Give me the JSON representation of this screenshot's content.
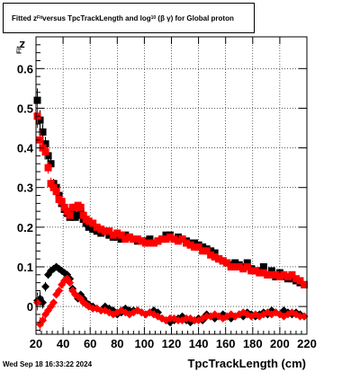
{
  "title": {
    "prefix": "Fitted ",
    "z": "z",
    "z_sub": "Fit",
    "middle": " versus TpcTrackLength and log",
    "log_sub": "10",
    "suffix": "(β γ) for Global proton"
  },
  "footer": "Wed Sep 18 16:33:22 2024",
  "colors": {
    "series_a": "#000000",
    "series_b": "#ff0000",
    "grid": "#000000"
  },
  "chart_data": {
    "type": "scatter",
    "xlabel": "TpcTrackLength (cm)",
    "ylabel": "z",
    "ylabel_sub": "Fit",
    "xlim": [
      20,
      220
    ],
    "ylim": [
      -0.07,
      0.68
    ],
    "xticks": [
      20,
      40,
      60,
      80,
      100,
      120,
      140,
      160,
      180,
      200,
      220
    ],
    "yticks": [
      0,
      0.1,
      0.2,
      0.3,
      0.4,
      0.5,
      0.6
    ],
    "ytick_labels": [
      "0",
      "0.1",
      "0.2",
      "0.3",
      "0.4",
      "0.5",
      "0.6"
    ],
    "grid": true,
    "series": [
      {
        "marker": "square",
        "color": "#000000",
        "x": [
          21,
          23,
          25,
          27,
          29,
          31,
          33,
          35,
          37,
          39,
          41,
          43,
          45,
          47,
          49,
          51,
          53,
          55,
          57,
          59,
          62,
          65,
          68,
          71,
          74,
          77,
          80,
          83,
          86,
          89,
          92,
          95,
          98,
          101,
          104,
          107,
          110,
          113,
          116,
          119,
          122,
          125,
          128,
          131,
          134,
          137,
          140,
          143,
          146,
          149,
          152,
          155,
          158,
          161,
          164,
          167,
          170,
          173,
          176,
          179,
          182,
          185,
          188,
          191,
          194,
          197,
          200,
          203,
          206,
          209,
          212,
          215,
          218
        ],
        "y": [
          0.52,
          0.47,
          0.44,
          0.41,
          0.38,
          0.36,
          0.31,
          0.3,
          0.28,
          0.26,
          0.245,
          0.235,
          0.225,
          0.235,
          0.225,
          0.23,
          0.24,
          0.22,
          0.21,
          0.2,
          0.195,
          0.19,
          0.185,
          0.19,
          0.18,
          0.175,
          0.175,
          0.17,
          0.18,
          0.175,
          0.17,
          0.165,
          0.165,
          0.165,
          0.17,
          0.16,
          0.165,
          0.17,
          0.18,
          0.18,
          0.17,
          0.175,
          0.17,
          0.165,
          0.16,
          0.16,
          0.155,
          0.15,
          0.145,
          0.14,
          0.135,
          0.12,
          0.115,
          0.11,
          0.105,
          0.11,
          0.105,
          0.1,
          0.11,
          0.095,
          0.09,
          0.09,
          0.1,
          0.08,
          0.09,
          0.075,
          0.085,
          0.075,
          0.07,
          0.07,
          0.065,
          0.06,
          0.055
        ],
        "error": [
          0.03,
          0.025,
          0.02,
          0.018,
          0.015,
          0.015,
          0.012,
          0.01,
          0.01,
          0.01,
          0.009,
          0.009,
          0.008,
          0.008,
          0.008,
          0.008,
          0.008,
          0.008,
          0.007,
          0.007,
          0.007,
          0.007,
          0.006,
          0.006,
          0.006,
          0.006,
          0.006,
          0.006,
          0.006,
          0.006,
          0.006,
          0.006,
          0.006,
          0.006,
          0.006,
          0.006,
          0.006,
          0.006,
          0.006,
          0.006,
          0.006,
          0.006,
          0.006,
          0.006,
          0.006,
          0.006,
          0.006,
          0.006,
          0.006,
          0.006,
          0.006,
          0.006,
          0.006,
          0.006,
          0.006,
          0.006,
          0.006,
          0.006,
          0.006,
          0.006,
          0.006,
          0.006,
          0.006,
          0.006,
          0.006,
          0.006,
          0.006,
          0.006,
          0.006,
          0.006,
          0.006,
          0.006,
          0.006
        ]
      },
      {
        "marker": "square",
        "color": "#ff0000",
        "x": [
          21,
          23,
          25,
          27,
          29,
          31,
          33,
          35,
          37,
          39,
          41,
          43,
          45,
          47,
          49,
          51,
          53,
          55,
          57,
          59,
          62,
          65,
          68,
          71,
          74,
          77,
          80,
          83,
          86,
          89,
          92,
          95,
          98,
          101,
          104,
          107,
          110,
          113,
          116,
          119,
          122,
          125,
          128,
          131,
          134,
          137,
          140,
          143,
          146,
          149,
          152,
          155,
          158,
          161,
          164,
          167,
          170,
          173,
          176,
          179,
          182,
          185,
          188,
          191,
          194,
          197,
          200,
          203,
          206,
          209,
          212,
          215,
          218
        ],
        "y": [
          0.48,
          0.42,
          0.4,
          0.39,
          0.35,
          0.31,
          0.3,
          0.29,
          0.27,
          0.265,
          0.25,
          0.24,
          0.23,
          0.25,
          0.25,
          0.255,
          0.25,
          0.23,
          0.22,
          0.215,
          0.21,
          0.2,
          0.195,
          0.19,
          0.19,
          0.18,
          0.185,
          0.18,
          0.17,
          0.175,
          0.17,
          0.17,
          0.165,
          0.16,
          0.16,
          0.16,
          0.165,
          0.17,
          0.17,
          0.175,
          0.17,
          0.165,
          0.17,
          0.16,
          0.155,
          0.15,
          0.15,
          0.14,
          0.14,
          0.13,
          0.125,
          0.12,
          0.115,
          0.11,
          0.1,
          0.1,
          0.1,
          0.095,
          0.1,
          0.09,
          0.09,
          0.085,
          0.085,
          0.08,
          0.08,
          0.08,
          0.075,
          0.08,
          0.075,
          0.08,
          0.07,
          0.065,
          0.055
        ],
        "error": [
          0.03,
          0.025,
          0.02,
          0.018,
          0.015,
          0.015,
          0.012,
          0.01,
          0.01,
          0.01,
          0.009,
          0.009,
          0.008,
          0.008,
          0.008,
          0.008,
          0.008,
          0.008,
          0.007,
          0.007,
          0.007,
          0.007,
          0.006,
          0.006,
          0.006,
          0.006,
          0.006,
          0.006,
          0.006,
          0.006,
          0.006,
          0.006,
          0.006,
          0.006,
          0.006,
          0.006,
          0.006,
          0.006,
          0.006,
          0.006,
          0.006,
          0.006,
          0.006,
          0.006,
          0.006,
          0.006,
          0.006,
          0.006,
          0.006,
          0.006,
          0.006,
          0.006,
          0.006,
          0.006,
          0.006,
          0.006,
          0.006,
          0.006,
          0.006,
          0.006,
          0.006,
          0.006,
          0.006,
          0.006,
          0.006,
          0.006,
          0.006,
          0.006,
          0.006,
          0.006,
          0.006,
          0.006,
          0.006
        ]
      },
      {
        "marker": "diamond",
        "color": "#000000",
        "x": [
          21,
          23,
          25,
          27,
          29,
          31,
          33,
          35,
          37,
          39,
          41,
          43,
          45,
          47,
          49,
          51,
          53,
          55,
          57,
          59,
          62,
          65,
          68,
          71,
          74,
          77,
          80,
          83,
          86,
          89,
          92,
          95,
          98,
          101,
          104,
          107,
          110,
          113,
          116,
          119,
          122,
          125,
          128,
          131,
          134,
          137,
          140,
          143,
          146,
          149,
          152,
          155,
          158,
          161,
          164,
          167,
          170,
          173,
          176,
          179,
          182,
          185,
          188,
          191,
          194,
          197,
          200,
          203,
          206,
          209,
          212,
          215,
          218
        ],
        "y": [
          0.015,
          0.02,
          0.01,
          0.05,
          0.08,
          0.09,
          0.095,
          0.1,
          0.095,
          0.09,
          0.085,
          0.08,
          0.07,
          0.045,
          0.03,
          0.02,
          0.03,
          0.02,
          0.01,
          0.005,
          0.0,
          -0.005,
          -0.01,
          0.0,
          -0.005,
          -0.01,
          -0.02,
          -0.015,
          -0.005,
          -0.01,
          -0.01,
          -0.01,
          -0.015,
          -0.02,
          -0.015,
          -0.01,
          -0.015,
          -0.03,
          -0.035,
          -0.04,
          -0.035,
          -0.03,
          -0.025,
          -0.035,
          -0.04,
          -0.035,
          -0.03,
          -0.035,
          -0.02,
          -0.025,
          -0.03,
          -0.025,
          -0.02,
          -0.025,
          -0.03,
          -0.025,
          -0.02,
          -0.025,
          -0.015,
          -0.02,
          -0.025,
          -0.02,
          -0.015,
          -0.02,
          -0.01,
          -0.015,
          -0.02,
          -0.01,
          -0.015,
          -0.02,
          -0.015,
          -0.02,
          -0.025
        ],
        "error": [
          0.02,
          0.018,
          0.015,
          0.012,
          0.01,
          0.01,
          0.009,
          0.009,
          0.008,
          0.008,
          0.008,
          0.007,
          0.007,
          0.007,
          0.006,
          0.006,
          0.006,
          0.006,
          0.006,
          0.006,
          0.006,
          0.006,
          0.006,
          0.006,
          0.006,
          0.006,
          0.006,
          0.006,
          0.006,
          0.006,
          0.006,
          0.006,
          0.006,
          0.006,
          0.006,
          0.006,
          0.006,
          0.006,
          0.006,
          0.006,
          0.006,
          0.006,
          0.006,
          0.006,
          0.006,
          0.006,
          0.006,
          0.006,
          0.006,
          0.006,
          0.006,
          0.006,
          0.006,
          0.006,
          0.006,
          0.006,
          0.006,
          0.006,
          0.006,
          0.006,
          0.006,
          0.006,
          0.006,
          0.006,
          0.006,
          0.006,
          0.006,
          0.006,
          0.006,
          0.006,
          0.006,
          0.006,
          0.006
        ]
      },
      {
        "marker": "diamond",
        "color": "#ff0000",
        "x": [
          21,
          23,
          25,
          27,
          29,
          31,
          33,
          35,
          37,
          39,
          41,
          43,
          45,
          47,
          49,
          51,
          53,
          55,
          57,
          59,
          62,
          65,
          68,
          71,
          74,
          77,
          80,
          83,
          86,
          89,
          92,
          95,
          98,
          101,
          104,
          107,
          110,
          113,
          116,
          119,
          122,
          125,
          128,
          131,
          134,
          137,
          140,
          143,
          146,
          149,
          152,
          155,
          158,
          161,
          164,
          167,
          170,
          173,
          176,
          179,
          182,
          185,
          188,
          191,
          194,
          197,
          200,
          203,
          206,
          209,
          212,
          215,
          218
        ],
        "y": [
          0.01,
          -0.045,
          -0.035,
          -0.02,
          -0.01,
          0.0,
          0.01,
          0.03,
          0.04,
          0.055,
          0.065,
          0.07,
          0.06,
          0.04,
          0.03,
          0.025,
          0.02,
          0.01,
          0.005,
          0.0,
          -0.005,
          -0.005,
          -0.01,
          -0.01,
          -0.015,
          -0.02,
          -0.015,
          -0.01,
          -0.015,
          -0.02,
          -0.015,
          -0.01,
          -0.015,
          -0.02,
          -0.015,
          -0.02,
          -0.025,
          -0.03,
          -0.035,
          -0.03,
          -0.03,
          -0.035,
          -0.035,
          -0.03,
          -0.03,
          -0.035,
          -0.035,
          -0.03,
          -0.025,
          -0.025,
          -0.02,
          -0.025,
          -0.03,
          -0.025,
          -0.02,
          -0.025,
          -0.02,
          -0.015,
          -0.02,
          -0.025,
          -0.02,
          -0.025,
          -0.02,
          -0.015,
          -0.02,
          -0.015,
          -0.02,
          -0.025,
          -0.02,
          -0.015,
          -0.02,
          -0.025,
          -0.025
        ],
        "error": [
          0.02,
          0.018,
          0.015,
          0.012,
          0.01,
          0.01,
          0.009,
          0.009,
          0.008,
          0.008,
          0.008,
          0.007,
          0.007,
          0.007,
          0.006,
          0.006,
          0.006,
          0.006,
          0.006,
          0.006,
          0.006,
          0.006,
          0.006,
          0.006,
          0.006,
          0.006,
          0.006,
          0.006,
          0.006,
          0.006,
          0.006,
          0.006,
          0.006,
          0.006,
          0.006,
          0.006,
          0.006,
          0.006,
          0.006,
          0.006,
          0.006,
          0.006,
          0.006,
          0.006,
          0.006,
          0.006,
          0.006,
          0.006,
          0.006,
          0.006,
          0.006,
          0.006,
          0.006,
          0.006,
          0.006,
          0.006,
          0.006,
          0.006,
          0.006,
          0.006,
          0.006,
          0.006,
          0.006,
          0.006,
          0.006,
          0.006,
          0.006,
          0.006,
          0.006,
          0.006,
          0.006,
          0.006,
          0.006
        ]
      }
    ]
  }
}
